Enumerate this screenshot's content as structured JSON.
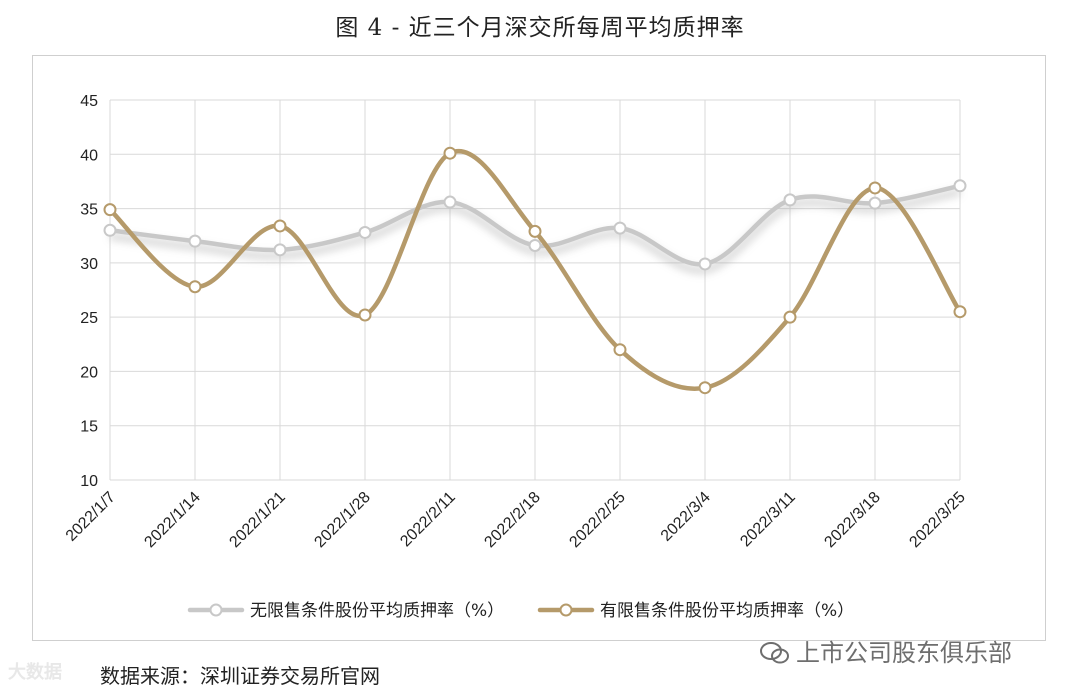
{
  "title": "图 4 - 近三个月深交所每周平均质押率",
  "source": "数据来源：深圳证券交易所官网",
  "watermark_right": "上市公司股东俱乐部",
  "watermark_left": "大数据",
  "colors": {
    "series1": "#c8c8c8",
    "series2": "#b59a6a",
    "grid": "#d9d9d9"
  },
  "chart_data": {
    "type": "line",
    "smooth": true,
    "grid": true,
    "legend_position": "bottom",
    "ylim": [
      10,
      45
    ],
    "yticks": [
      10,
      15,
      20,
      25,
      30,
      35,
      40,
      45
    ],
    "categories": [
      "2022/1/7",
      "2022/1/14",
      "2022/1/21",
      "2022/1/28",
      "2022/2/11",
      "2022/2/18",
      "2022/2/25",
      "2022/3/4",
      "2022/3/11",
      "2022/3/18",
      "2022/3/25"
    ],
    "series": [
      {
        "name": "无限售条件股份平均质押率（%）",
        "color": "#c8c8c8",
        "values": [
          33.0,
          32.0,
          31.2,
          32.8,
          35.6,
          31.6,
          33.2,
          29.9,
          35.8,
          35.5,
          37.1
        ]
      },
      {
        "name": "有限售条件股份平均质押率（%）",
        "color": "#b59a6a",
        "values": [
          34.9,
          27.8,
          33.4,
          25.2,
          40.1,
          32.9,
          22.0,
          18.5,
          25.0,
          36.9,
          25.5
        ]
      }
    ]
  }
}
